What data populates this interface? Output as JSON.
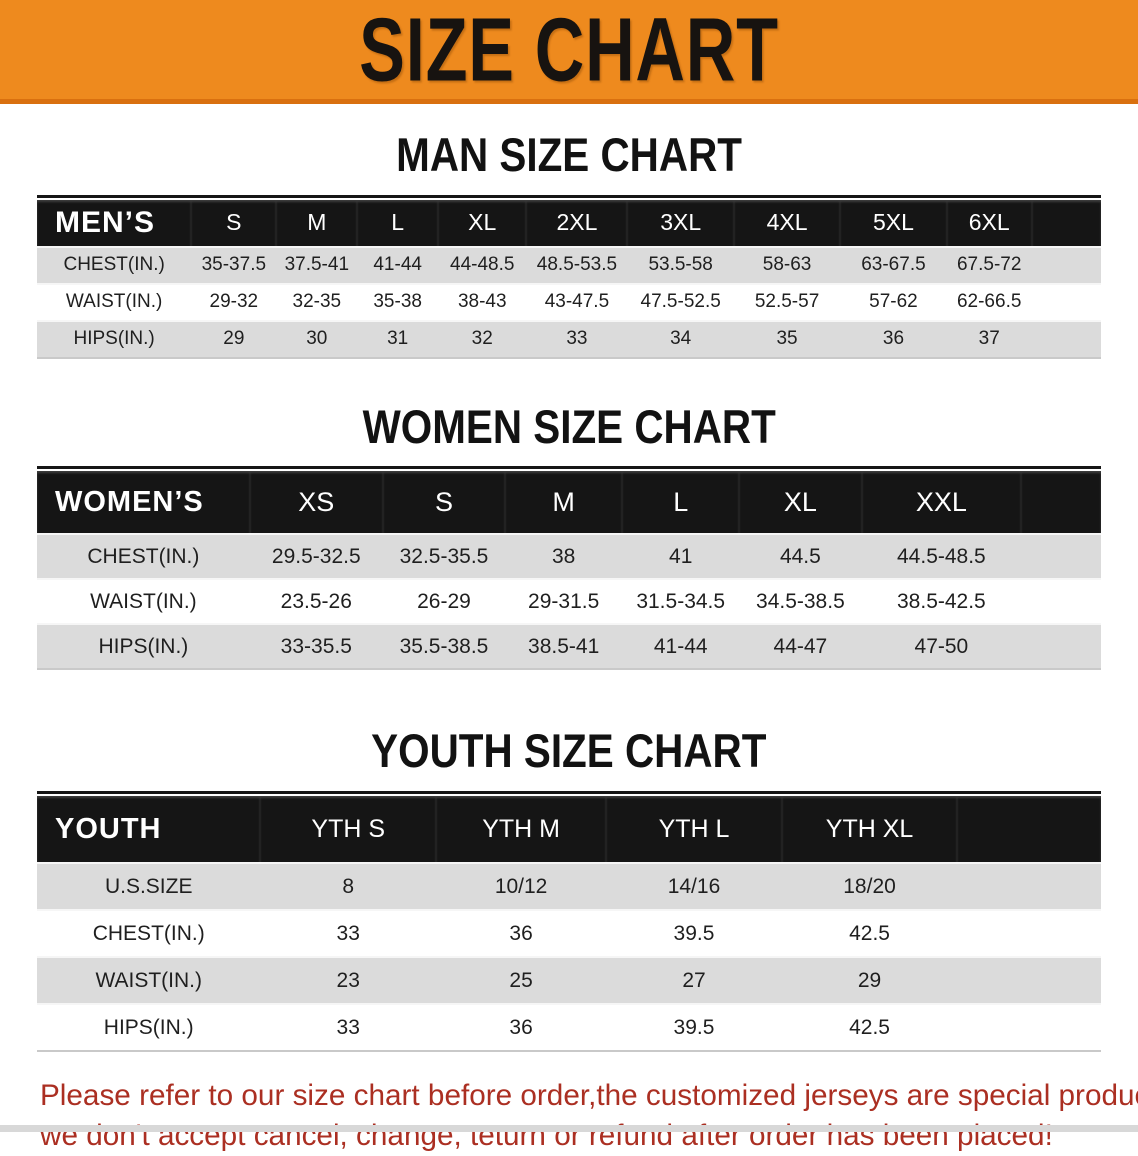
{
  "banner": {
    "title": "SIZE CHART",
    "background": "#EE8A1E"
  },
  "colors": {
    "banner_bg": "#EE8A1E",
    "header_bar": "#151515",
    "row_shade": "#DBDBDB",
    "note_red": "#AB2F22"
  },
  "sections": [
    {
      "heading": "MAN SIZE CHART",
      "table": {
        "corner_label": "MEN’S",
        "columns": [
          "S",
          "M",
          "L",
          "XL",
          "2XL",
          "3XL",
          "4XL",
          "5XL",
          "6XL"
        ],
        "rows": [
          {
            "label": "CHEST(IN.)",
            "values": [
              "35-37.5",
              "37.5-41",
              "41-44",
              "44-48.5",
              "48.5-53.5",
              "53.5-58",
              "58-63",
              "63-67.5",
              "67.5-72"
            ]
          },
          {
            "label": "WAIST(IN.)",
            "values": [
              "29-32",
              "32-35",
              "35-38",
              "38-43",
              "43-47.5",
              "47.5-52.5",
              "52.5-57",
              "57-62",
              "62-66.5"
            ]
          },
          {
            "label": "HIPS(IN.)",
            "values": [
              "29",
              "30",
              "31",
              "32",
              "33",
              "34",
              "35",
              "36",
              "37"
            ]
          }
        ]
      }
    },
    {
      "heading": "WOMEN SIZE CHART",
      "table": {
        "corner_label": "WOMEN’S",
        "columns": [
          "XS",
          "S",
          "M",
          "L",
          "XL",
          "XXL"
        ],
        "rows": [
          {
            "label": "CHEST(IN.)",
            "values": [
              "29.5-32.5",
              "32.5-35.5",
              "38",
              "41",
              "44.5",
              "44.5-48.5"
            ]
          },
          {
            "label": "WAIST(IN.)",
            "values": [
              "23.5-26",
              "26-29",
              "29-31.5",
              "31.5-34.5",
              "34.5-38.5",
              "38.5-42.5"
            ]
          },
          {
            "label": "HIPS(IN.)",
            "values": [
              "33-35.5",
              "35.5-38.5",
              "38.5-41",
              "41-44",
              "44-47",
              "47-50"
            ]
          }
        ]
      }
    },
    {
      "heading": "YOUTH SIZE CHART",
      "table": {
        "corner_label": "YOUTH",
        "columns": [
          "YTH S",
          "YTH M",
          "YTH L",
          "YTH XL"
        ],
        "rows": [
          {
            "label": "U.S.SIZE",
            "values": [
              "8",
              "10/12",
              "14/16",
              "18/20"
            ]
          },
          {
            "label": "CHEST(IN.)",
            "values": [
              "33",
              "36",
              "39.5",
              "42.5"
            ]
          },
          {
            "label": "WAIST(IN.)",
            "values": [
              "23",
              "25",
              "27",
              "29"
            ]
          },
          {
            "label": "HIPS(IN.)",
            "values": [
              "33",
              "36",
              "39.5",
              "42.5"
            ]
          }
        ]
      }
    }
  ],
  "footnote": {
    "line1": "Please refer to our size chart before order,the customized jerseys are special products,",
    "line2": "we don't accept cancel, change, teturn or refund after order has been placed!"
  }
}
